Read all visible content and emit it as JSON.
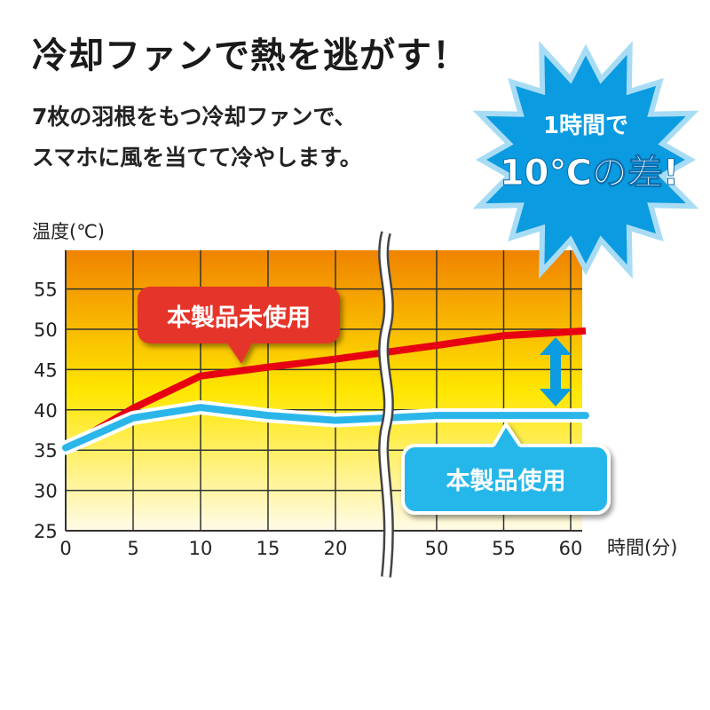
{
  "headline": "冷却ファンで熱を逃がす！",
  "description": [
    "7枚の羽根をもつ冷却ファンで、",
    "スマホに風を当てて冷やします。"
  ],
  "badge": {
    "line1": "1時間で",
    "line2": "10℃の差!"
  },
  "colors": {
    "without": "#e60012",
    "with": "#2bb6ea",
    "badge": "#0b9be0",
    "bg_top": "#f08300",
    "bg_mid": "#ffe600",
    "bg_bottom": "#fffbe8"
  },
  "chart_data": {
    "type": "line",
    "ylabel": "温度(℃)",
    "xlabel": "時間(分)",
    "x": [
      0,
      5,
      10,
      15,
      20,
      50,
      55,
      60
    ],
    "xticks": [
      "0",
      "5",
      "10",
      "15",
      "20",
      "50",
      "55",
      "60"
    ],
    "yticks": [
      "25",
      "30",
      "35",
      "40",
      "45",
      "50",
      "55"
    ],
    "ylim": [
      25,
      60
    ],
    "axis_break": "between 20 and 50",
    "grid": true,
    "series": [
      {
        "name": "本製品未使用",
        "values": [
          35.3,
          40.2,
          44.2,
          45.3,
          46.3,
          48.0,
          49.2,
          49.8
        ]
      },
      {
        "name": "本製品使用",
        "values": [
          35.3,
          39.0,
          40.3,
          39.3,
          38.7,
          39.3,
          39.3,
          39.3
        ]
      }
    ]
  }
}
